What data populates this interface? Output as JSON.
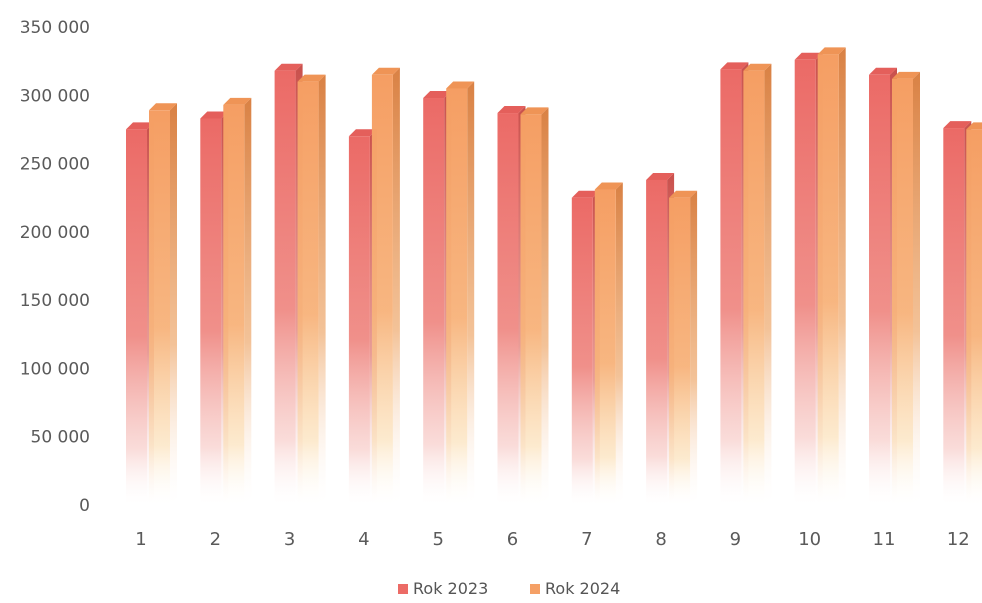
{
  "chart_data": {
    "type": "bar",
    "title": "",
    "xlabel": "",
    "ylabel": "",
    "categories": [
      "1",
      "2",
      "3",
      "4",
      "5",
      "6",
      "7",
      "8",
      "9",
      "10",
      "11",
      "12"
    ],
    "series": [
      {
        "name": "Rok 2023",
        "color": "#ec6b66",
        "values": [
          275000,
          283000,
          318000,
          270000,
          298000,
          287000,
          225000,
          238000,
          319000,
          326000,
          315000,
          276000
        ]
      },
      {
        "name": "Rok 2024",
        "color": "#f5a066",
        "values": [
          289000,
          293000,
          310000,
          315000,
          305000,
          286000,
          231000,
          225000,
          318000,
          330000,
          312000,
          275000
        ]
      }
    ],
    "y_ticks": [
      "0",
      "50 000",
      "100 000",
      "150 000",
      "200 000",
      "250 000",
      "300 000",
      "350 000"
    ],
    "y_tick_values": [
      0,
      50000,
      100000,
      150000,
      200000,
      250000,
      300000,
      350000
    ],
    "ylim": [
      0,
      350000
    ],
    "grid": false,
    "legend_position": "bottom-center"
  }
}
